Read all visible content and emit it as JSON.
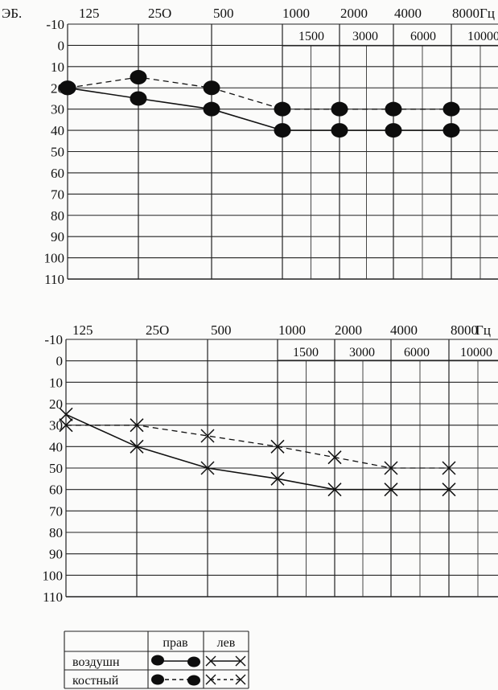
{
  "chart_data": [
    {
      "type": "line",
      "corner_label": "ЭБ.",
      "x_unit": "Гц",
      "x_top_ticks": [
        "125",
        "25О",
        "500",
        "1000",
        "2000",
        "4000",
        "8000"
      ],
      "x_mid_ticks": [
        "1500",
        "3000",
        "6000",
        "10000"
      ],
      "y_ticks": [
        "-10",
        "0",
        "10",
        "20",
        "30",
        "40",
        "50",
        "60",
        "70",
        "80",
        "90",
        "100",
        "110"
      ],
      "ylim": [
        -10,
        110
      ],
      "y_inverted": true,
      "grid": true,
      "series": [
        {
          "name": "воздушн",
          "ear": "прав",
          "marker": "filled-circle",
          "line": "solid",
          "x": [
            125,
            250,
            500,
            1000,
            2000,
            4000,
            8000
          ],
          "values": [
            20,
            25,
            30,
            40,
            40,
            40,
            40
          ]
        },
        {
          "name": "костный",
          "ear": "прав",
          "marker": "filled-circle",
          "line": "dashed",
          "x": [
            125,
            250,
            500,
            1000,
            2000,
            4000,
            8000
          ],
          "values": [
            20,
            15,
            20,
            30,
            30,
            30,
            30
          ]
        }
      ]
    },
    {
      "type": "line",
      "corner_label": "",
      "x_unit": "Гц",
      "x_top_ticks": [
        "125",
        "25О",
        "500",
        "1000",
        "2000",
        "4000",
        "8000"
      ],
      "x_mid_ticks": [
        "1500",
        "3000",
        "6000",
        "10000"
      ],
      "y_ticks": [
        "-10",
        "0",
        "10",
        "20",
        "30",
        "40",
        "50",
        "60",
        "70",
        "80",
        "90",
        "100",
        "110"
      ],
      "ylim": [
        -10,
        110
      ],
      "y_inverted": true,
      "grid": true,
      "series": [
        {
          "name": "воздушн",
          "ear": "лев",
          "marker": "cross",
          "line": "solid",
          "x": [
            125,
            250,
            500,
            1000,
            2000,
            4000,
            8000
          ],
          "values": [
            25,
            40,
            50,
            55,
            60,
            60,
            60
          ]
        },
        {
          "name": "костный",
          "ear": "лев",
          "marker": "cross",
          "line": "dashed",
          "x": [
            125,
            250,
            500,
            1000,
            2000,
            4000,
            8000
          ],
          "values": [
            30,
            30,
            35,
            40,
            45,
            50,
            50
          ]
        }
      ]
    }
  ],
  "legend": {
    "header_right": "прав",
    "header_left": "лев",
    "rows": [
      "воздушн",
      "костный"
    ]
  }
}
